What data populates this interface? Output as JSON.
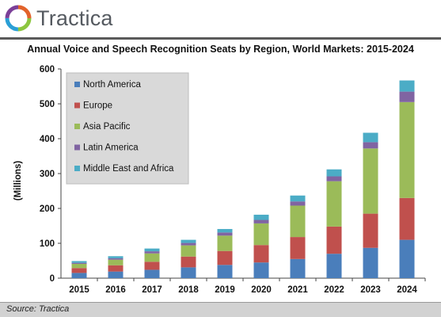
{
  "brand": {
    "name": "Tractica"
  },
  "source": "Source: Tractica",
  "chart_data": {
    "type": "bar",
    "stacked": true,
    "title": "Annual Voice and Speech Recognition Seats by Region, World Markets: 2015-2024",
    "xlabel": "",
    "ylabel": "(Millions)",
    "ylim": [
      0,
      600
    ],
    "yticks": [
      "0",
      "100",
      "200",
      "300",
      "400",
      "500",
      "600"
    ],
    "grid": false,
    "legend_position": "top-left",
    "categories": [
      "2015",
      "2016",
      "2017",
      "2018",
      "2019",
      "2020",
      "2021",
      "2022",
      "2023",
      "2024"
    ],
    "series": [
      {
        "name": "North America",
        "color": "#4a7ebb",
        "values": [
          15,
          19,
          24,
          31,
          38,
          45,
          55,
          70,
          87,
          110
        ]
      },
      {
        "name": "Europe",
        "color": "#c0504d",
        "values": [
          14,
          18,
          23,
          31,
          40,
          50,
          63,
          78,
          98,
          120
        ]
      },
      {
        "name": "Asia Pacific",
        "color": "#9bbb59",
        "values": [
          12,
          16,
          24,
          32,
          44,
          62,
          90,
          130,
          187,
          275
        ]
      },
      {
        "name": "Latin America",
        "color": "#8064a2",
        "values": [
          3,
          4,
          6,
          7,
          9,
          10,
          12,
          14,
          18,
          30
        ]
      },
      {
        "name": "Middle East and Africa",
        "color": "#4bacc6",
        "values": [
          5,
          6,
          8,
          9,
          10,
          15,
          17,
          20,
          27,
          32
        ]
      }
    ]
  }
}
